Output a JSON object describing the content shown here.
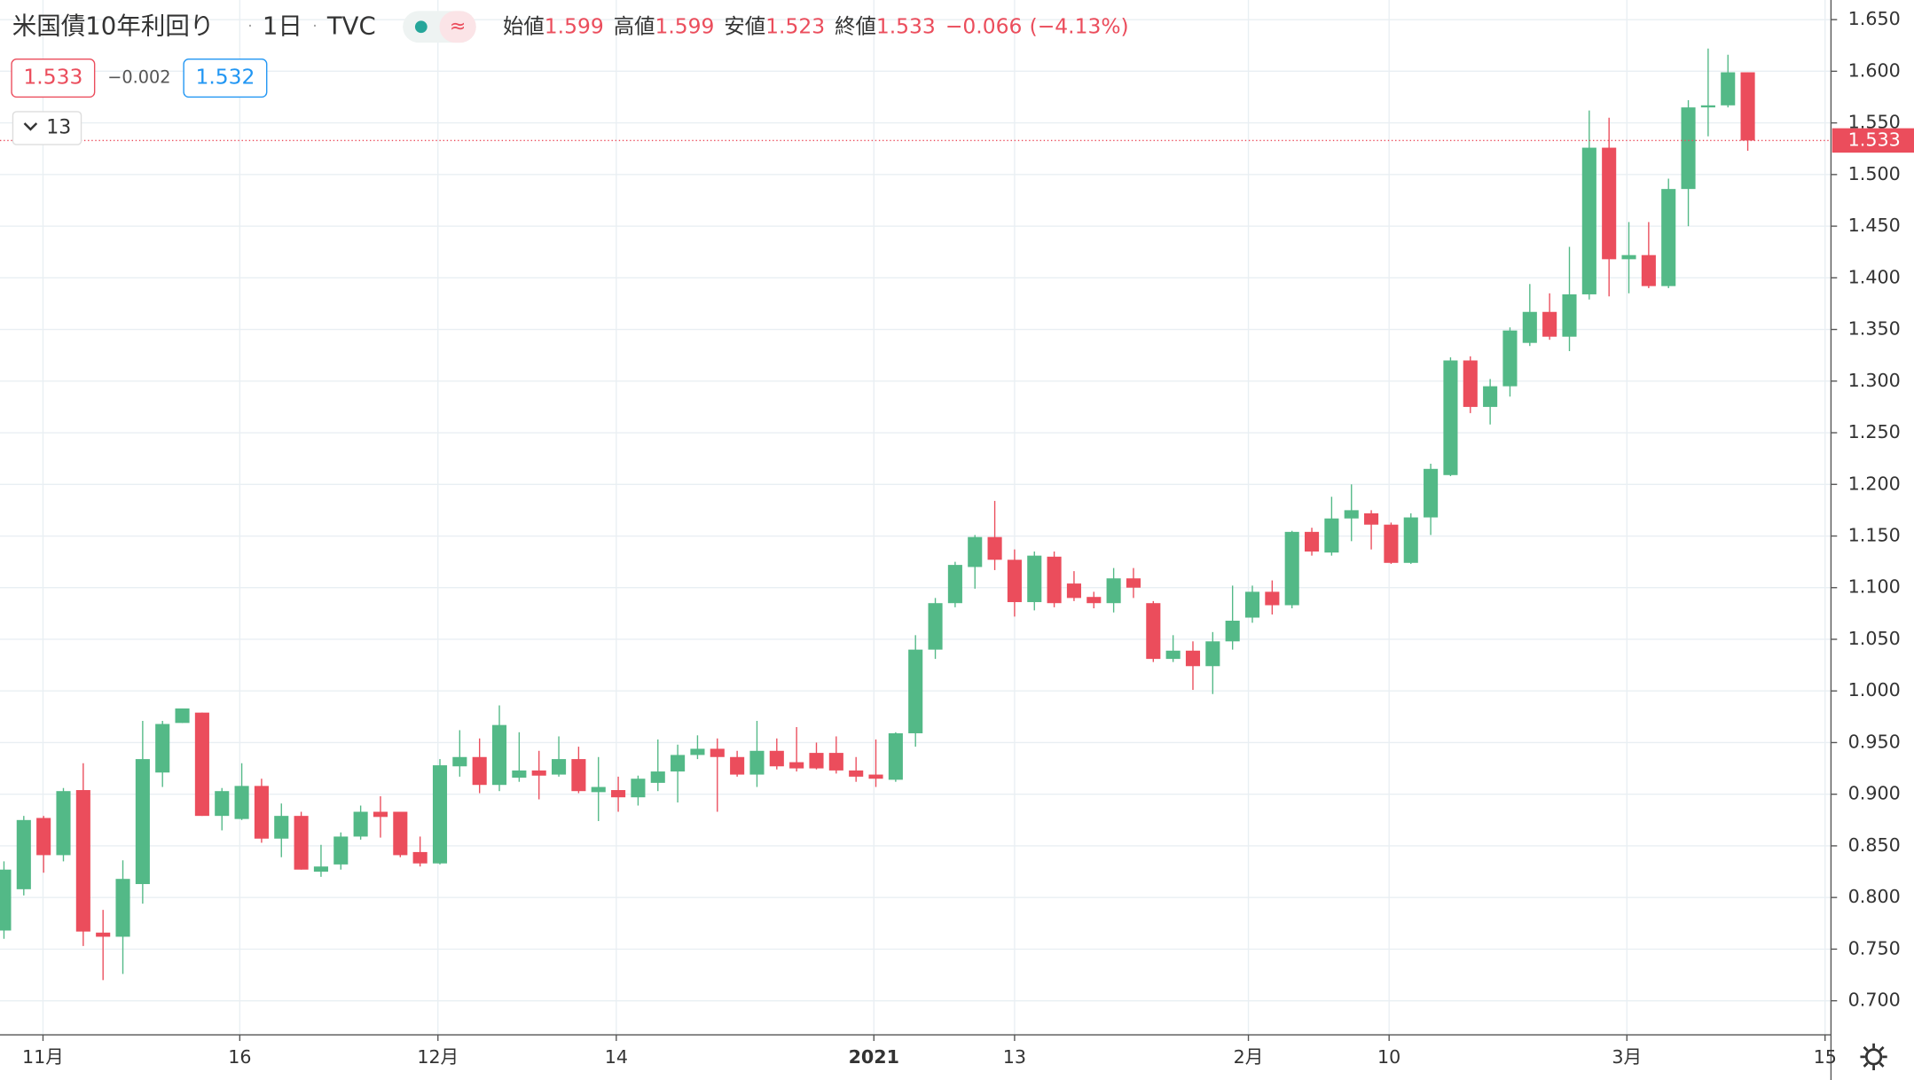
{
  "chart_data": {
    "type": "candlestick",
    "title": "米国債10年利回り",
    "interval": "1日",
    "source": "TVC",
    "legend": {
      "open_label": "始値",
      "open": "1.599",
      "high_label": "高値",
      "high": "1.599",
      "low_label": "安値",
      "low": "1.523",
      "close_label": "終値",
      "close": "1.533",
      "change": "−0.066",
      "change_pct": "(−4.13%)"
    },
    "boxes": {
      "bid": "1.533",
      "spread": "−0.002",
      "ask": "1.532"
    },
    "indicators_count": "13",
    "last_price": {
      "value": 1.533,
      "label": "1.533"
    },
    "up_color": "#53b987",
    "down_color": "#eb4d5c",
    "grid": true,
    "x": [
      0,
      1,
      2,
      3,
      4,
      5,
      6,
      7,
      8,
      9,
      10,
      11,
      12,
      13,
      14,
      15,
      16,
      17,
      18,
      19,
      20,
      21,
      22,
      23,
      24,
      25,
      26,
      27,
      28,
      29,
      30,
      31,
      32,
      33,
      34,
      35,
      36,
      37,
      38,
      39,
      40,
      41,
      42,
      43,
      44,
      45,
      46,
      47,
      48,
      49,
      50,
      51,
      52,
      53,
      54,
      55,
      56,
      57,
      58,
      59,
      60,
      61,
      62,
      63,
      64,
      65,
      66,
      67,
      68,
      69,
      70,
      71,
      72,
      73,
      74,
      75,
      76,
      77,
      78,
      79,
      80,
      81,
      82,
      83,
      84,
      85,
      86,
      87,
      88
    ],
    "open": [
      0.768,
      0.808,
      0.877,
      0.841,
      0.904,
      0.766,
      0.762,
      0.813,
      0.921,
      0.969,
      0.979,
      0.879,
      0.876,
      0.908,
      0.857,
      0.879,
      0.825,
      0.832,
      0.859,
      0.883,
      0.883,
      0.844,
      0.833,
      0.927,
      0.936,
      0.909,
      0.916,
      0.923,
      0.919,
      0.934,
      0.902,
      0.904,
      0.897,
      0.911,
      0.922,
      0.938,
      0.944,
      0.936,
      0.919,
      0.942,
      0.931,
      0.94,
      0.94,
      0.923,
      0.919,
      0.914,
      0.959,
      1.04,
      1.085,
      1.12,
      1.149,
      1.127,
      1.086,
      1.13,
      1.104,
      1.091,
      1.085,
      1.109,
      1.085,
      1.031,
      1.039,
      1.024,
      1.048,
      1.071,
      1.096,
      1.083,
      1.154,
      1.134,
      1.167,
      1.172,
      1.161,
      1.124,
      1.168,
      1.209,
      1.32,
      1.275,
      1.295,
      1.337,
      1.367,
      1.343,
      1.384,
      1.526,
      1.418,
      1.422,
      1.392,
      1.486,
      1.565,
      1.567,
      1.599
    ],
    "high": [
      0.835,
      0.879,
      0.879,
      0.906,
      0.93,
      0.788,
      0.836,
      0.971,
      0.971,
      0.983,
      0.979,
      0.906,
      0.93,
      0.915,
      0.891,
      0.883,
      0.851,
      0.863,
      0.889,
      0.898,
      0.883,
      0.859,
      0.934,
      0.962,
      0.954,
      0.986,
      0.96,
      0.942,
      0.956,
      0.946,
      0.936,
      0.917,
      0.918,
      0.953,
      0.948,
      0.957,
      0.954,
      0.942,
      0.971,
      0.954,
      0.965,
      0.95,
      0.956,
      0.936,
      0.953,
      0.96,
      1.054,
      1.09,
      1.125,
      1.151,
      1.184,
      1.137,
      1.135,
      1.135,
      1.116,
      1.096,
      1.119,
      1.119,
      1.087,
      1.054,
      1.048,
      1.057,
      1.102,
      1.102,
      1.107,
      1.155,
      1.158,
      1.188,
      1.2,
      1.175,
      1.163,
      1.172,
      1.22,
      1.323,
      1.324,
      1.302,
      1.352,
      1.394,
      1.385,
      1.43,
      1.562,
      1.555,
      1.454,
      1.454,
      1.496,
      1.572,
      1.622,
      1.616,
      1.599
    ],
    "low": [
      0.76,
      0.802,
      0.824,
      0.835,
      0.753,
      0.72,
      0.726,
      0.794,
      0.907,
      0.969,
      0.879,
      0.865,
      0.875,
      0.853,
      0.839,
      0.827,
      0.82,
      0.827,
      0.856,
      0.858,
      0.839,
      0.83,
      0.832,
      0.917,
      0.901,
      0.903,
      0.912,
      0.895,
      0.917,
      0.901,
      0.874,
      0.883,
      0.889,
      0.903,
      0.892,
      0.934,
      0.883,
      0.917,
      0.907,
      0.924,
      0.922,
      0.924,
      0.92,
      0.912,
      0.907,
      0.912,
      0.946,
      1.031,
      1.081,
      1.099,
      1.117,
      1.072,
      1.078,
      1.081,
      1.087,
      1.08,
      1.076,
      1.09,
      1.028,
      1.028,
      1.001,
      0.997,
      1.04,
      1.066,
      1.074,
      1.08,
      1.131,
      1.131,
      1.145,
      1.137,
      1.123,
      1.123,
      1.151,
      1.208,
      1.269,
      1.258,
      1.285,
      1.334,
      1.34,
      1.329,
      1.379,
      1.382,
      1.385,
      1.39,
      1.39,
      1.45,
      1.537,
      1.565,
      1.523
    ],
    "close": [
      0.827,
      0.875,
      0.841,
      0.903,
      0.767,
      0.762,
      0.818,
      0.934,
      0.968,
      0.983,
      0.879,
      0.903,
      0.908,
      0.857,
      0.879,
      0.827,
      0.83,
      0.859,
      0.883,
      0.878,
      0.841,
      0.833,
      0.928,
      0.936,
      0.909,
      0.967,
      0.923,
      0.918,
      0.934,
      0.903,
      0.907,
      0.897,
      0.915,
      0.922,
      0.938,
      0.944,
      0.936,
      0.919,
      0.942,
      0.927,
      0.925,
      0.925,
      0.923,
      0.917,
      0.915,
      0.959,
      1.04,
      1.085,
      1.122,
      1.149,
      1.127,
      1.086,
      1.131,
      1.085,
      1.09,
      1.085,
      1.109,
      1.1,
      1.031,
      1.039,
      1.024,
      1.048,
      1.068,
      1.096,
      1.083,
      1.154,
      1.135,
      1.167,
      1.175,
      1.161,
      1.124,
      1.168,
      1.215,
      1.32,
      1.275,
      1.295,
      1.349,
      1.367,
      1.343,
      1.384,
      1.526,
      1.418,
      1.422,
      1.392,
      1.486,
      1.565,
      1.567,
      1.599,
      1.533
    ],
    "xlim": [
      -0.2,
      92.2
    ],
    "xticks": [
      {
        "value": 1.97,
        "label": "11月"
      },
      {
        "value": 11.9,
        "label": "16"
      },
      {
        "value": 21.9,
        "label": "12月"
      },
      {
        "value": 30.9,
        "label": "14"
      },
      {
        "value": 43.9,
        "label": "2021"
      },
      {
        "value": 51.0,
        "label": "13"
      },
      {
        "value": 62.8,
        "label": "2月"
      },
      {
        "value": 69.9,
        "label": "10"
      },
      {
        "value": 81.9,
        "label": "3月"
      },
      {
        "value": 91.9,
        "label": "15"
      }
    ],
    "ylim": [
      0.667,
      1.669
    ],
    "yticks": [
      {
        "value": 0.7,
        "label": "0.700"
      },
      {
        "value": 0.75,
        "label": "0.750"
      },
      {
        "value": 0.8,
        "label": "0.800"
      },
      {
        "value": 0.85,
        "label": "0.850"
      },
      {
        "value": 0.9,
        "label": "0.900"
      },
      {
        "value": 0.95,
        "label": "0.950"
      },
      {
        "value": 1.0,
        "label": "1.000"
      },
      {
        "value": 1.05,
        "label": "1.050"
      },
      {
        "value": 1.1,
        "label": "1.100"
      },
      {
        "value": 1.15,
        "label": "1.150"
      },
      {
        "value": 1.2,
        "label": "1.200"
      },
      {
        "value": 1.25,
        "label": "1.250"
      },
      {
        "value": 1.3,
        "label": "1.300"
      },
      {
        "value": 1.35,
        "label": "1.350"
      },
      {
        "value": 1.4,
        "label": "1.400"
      },
      {
        "value": 1.45,
        "label": "1.450"
      },
      {
        "value": 1.5,
        "label": "1.500"
      },
      {
        "value": 1.55,
        "label": "1.550"
      },
      {
        "value": 1.6,
        "label": "1.600"
      },
      {
        "value": 1.65,
        "label": "1.650"
      }
    ]
  }
}
